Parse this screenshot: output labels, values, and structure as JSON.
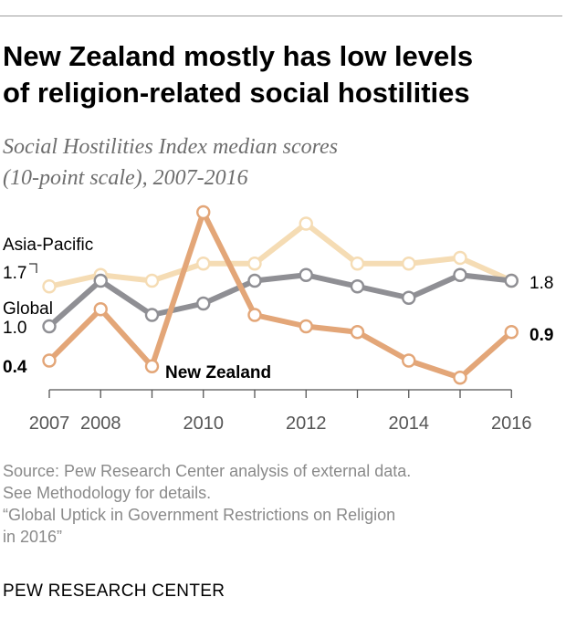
{
  "title_lines": [
    "New Zealand mostly has low levels",
    "of religion-related social hostilities"
  ],
  "subtitle_lines": [
    "Social Hostilities Index median scores",
    "(10-point scale), 2007-2016"
  ],
  "colors": {
    "asia_pacific": "#f5dcb4",
    "global": "#8f8f94",
    "new_zealand": "#e3a678",
    "axis": "#555555",
    "muted_text": "#8a8a8a"
  },
  "chart_data": {
    "type": "line",
    "title": "New Zealand mostly has low levels of religion-related social hostilities",
    "subtitle": "Social Hostilities Index median scores (10-point scale), 2007-2016",
    "x": [
      2007,
      2008,
      2009,
      2010,
      2011,
      2012,
      2013,
      2014,
      2015,
      2016
    ],
    "x_tick_labels": [
      "2007",
      "2008",
      "2010",
      "2012",
      "2014",
      "2016"
    ],
    "x_ticks": [
      2007,
      2008,
      2010,
      2012,
      2014,
      2016
    ],
    "ylim": [
      0,
      3.4
    ],
    "grid": false,
    "series": [
      {
        "name": "Asia-Pacific",
        "key": "asia_pacific",
        "values": [
          1.7,
          1.9,
          1.8,
          2.1,
          2.1,
          2.8,
          2.1,
          2.1,
          2.2,
          1.8
        ],
        "start_label": "1.7",
        "end_label": "1.8"
      },
      {
        "name": "Global",
        "key": "global",
        "values": [
          1.0,
          1.8,
          1.2,
          1.4,
          1.8,
          1.9,
          1.7,
          1.5,
          1.9,
          1.8
        ],
        "start_label": "1.0"
      },
      {
        "name": "New Zealand",
        "key": "new_zealand",
        "values": [
          0.4,
          1.3,
          0.3,
          3.0,
          1.2,
          1.0,
          0.9,
          0.4,
          0.1,
          0.9
        ],
        "start_label": "0.4",
        "end_label": "0.9"
      }
    ]
  },
  "source_lines": [
    "Source: Pew Research Center analysis of external data.",
    "See Methodology for details.",
    "“Global Uptick in Government Restrictions on Religion",
    "in 2016”"
  ],
  "brand": "PEW RESEARCH CENTER"
}
